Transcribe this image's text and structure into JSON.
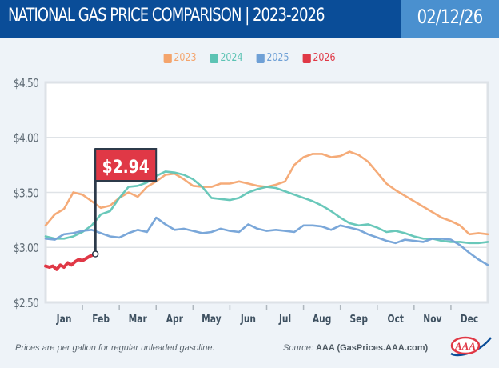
{
  "header": {
    "title": "NATIONAL GAS PRICE COMPARISON | 2023-2026",
    "date": "02/12/26"
  },
  "footer": {
    "note": "Prices are per gallon for regular unleaded gasoline.",
    "source_label": "Source:",
    "source_name": "AAA (GasPrices.AAA.com)",
    "logo_text": "AAA"
  },
  "colors": {
    "banner": "#0a4d98",
    "date_box": "#4a90cf",
    "2023": "#f4a46c",
    "2024": "#5cc3b4",
    "2025": "#6fa0d6",
    "2026": "#e03846",
    "flag": "#e03846",
    "pole": "#2c3a4a"
  },
  "chart_data": {
    "type": "line",
    "title": "NATIONAL GAS PRICE COMPARISON | 2023-2026",
    "xlabel": "",
    "ylabel": "",
    "ylim": [
      2.5,
      4.5
    ],
    "xlim": [
      0,
      12
    ],
    "x_unit": "months from Jan 1",
    "grid": true,
    "legend_position": "top-center",
    "y_ticks": [
      4.5,
      4.0,
      3.5,
      3.0,
      2.5
    ],
    "y_tick_labels": [
      "$4.50",
      "$4.00",
      "$3.50",
      "$3.00",
      "$2.50"
    ],
    "x_tick_labels": [
      "Jan",
      "Feb",
      "Mar",
      "Apr",
      "May",
      "Jun",
      "Jul",
      "Aug",
      "Sep",
      "Oct",
      "Nov",
      "Dec"
    ],
    "series": [
      {
        "name": "2023",
        "x": [
          0,
          0.25,
          0.5,
          0.75,
          1,
          1.25,
          1.5,
          1.75,
          2,
          2.25,
          2.5,
          2.75,
          3,
          3.25,
          3.5,
          3.75,
          4,
          4.25,
          4.5,
          4.75,
          5,
          5.25,
          5.5,
          5.75,
          6,
          6.25,
          6.5,
          6.75,
          7,
          7.25,
          7.5,
          7.75,
          8,
          8.25,
          8.5,
          8.75,
          9,
          9.25,
          9.5,
          9.75,
          10,
          10.25,
          10.5,
          10.75,
          11,
          11.25,
          11.5,
          11.75,
          12
        ],
        "values": [
          3.2,
          3.3,
          3.35,
          3.5,
          3.48,
          3.42,
          3.36,
          3.38,
          3.45,
          3.5,
          3.46,
          3.55,
          3.6,
          3.66,
          3.67,
          3.62,
          3.56,
          3.55,
          3.55,
          3.58,
          3.58,
          3.6,
          3.58,
          3.56,
          3.55,
          3.57,
          3.6,
          3.75,
          3.82,
          3.85,
          3.85,
          3.82,
          3.83,
          3.87,
          3.84,
          3.78,
          3.68,
          3.58,
          3.52,
          3.47,
          3.42,
          3.37,
          3.32,
          3.27,
          3.24,
          3.2,
          3.12,
          3.13,
          3.12
        ]
      },
      {
        "name": "2024",
        "x": [
          0,
          0.25,
          0.5,
          0.75,
          1,
          1.25,
          1.5,
          1.75,
          2,
          2.25,
          2.5,
          2.75,
          3,
          3.25,
          3.5,
          3.75,
          4,
          4.25,
          4.5,
          4.75,
          5,
          5.25,
          5.5,
          5.75,
          6,
          6.25,
          6.5,
          6.75,
          7,
          7.25,
          7.5,
          7.75,
          8,
          8.25,
          8.5,
          8.75,
          9,
          9.25,
          9.5,
          9.75,
          10,
          10.25,
          10.5,
          10.75,
          11,
          11.25,
          11.5,
          11.75,
          12
        ],
        "values": [
          3.1,
          3.08,
          3.08,
          3.1,
          3.14,
          3.2,
          3.3,
          3.33,
          3.45,
          3.55,
          3.56,
          3.59,
          3.65,
          3.69,
          3.68,
          3.66,
          3.62,
          3.55,
          3.45,
          3.44,
          3.43,
          3.45,
          3.5,
          3.53,
          3.55,
          3.54,
          3.51,
          3.48,
          3.45,
          3.42,
          3.38,
          3.33,
          3.27,
          3.22,
          3.2,
          3.21,
          3.18,
          3.14,
          3.15,
          3.13,
          3.1,
          3.08,
          3.08,
          3.06,
          3.05,
          3.05,
          3.04,
          3.04,
          3.05
        ]
      },
      {
        "name": "2025",
        "x": [
          0,
          0.25,
          0.5,
          0.75,
          1,
          1.25,
          1.5,
          1.75,
          2,
          2.25,
          2.5,
          2.75,
          3,
          3.25,
          3.5,
          3.75,
          4,
          4.25,
          4.5,
          4.75,
          5,
          5.25,
          5.5,
          5.75,
          6,
          6.25,
          6.5,
          6.75,
          7,
          7.25,
          7.5,
          7.75,
          8,
          8.25,
          8.5,
          8.75,
          9,
          9.25,
          9.5,
          9.75,
          10,
          10.25,
          10.5,
          10.75,
          11,
          11.25,
          11.5,
          11.75,
          12
        ],
        "values": [
          3.08,
          3.07,
          3.12,
          3.13,
          3.15,
          3.16,
          3.13,
          3.1,
          3.09,
          3.13,
          3.16,
          3.14,
          3.27,
          3.21,
          3.16,
          3.17,
          3.15,
          3.13,
          3.14,
          3.17,
          3.15,
          3.14,
          3.21,
          3.17,
          3.15,
          3.16,
          3.15,
          3.14,
          3.2,
          3.2,
          3.19,
          3.16,
          3.2,
          3.18,
          3.16,
          3.12,
          3.09,
          3.06,
          3.04,
          3.07,
          3.06,
          3.05,
          3.08,
          3.08,
          3.07,
          3.02,
          2.95,
          2.89,
          2.84
        ]
      },
      {
        "name": "2026",
        "x": [
          0,
          0.1,
          0.2,
          0.3,
          0.4,
          0.5,
          0.6,
          0.7,
          0.8,
          0.9,
          1.0,
          1.1,
          1.2,
          1.35
        ],
        "values": [
          2.83,
          2.82,
          2.83,
          2.8,
          2.84,
          2.82,
          2.86,
          2.84,
          2.87,
          2.89,
          2.88,
          2.9,
          2.92,
          2.94
        ]
      }
    ],
    "annotation": {
      "label": "$2.94",
      "series": "2026",
      "x": 1.35,
      "value": 2.94
    }
  }
}
